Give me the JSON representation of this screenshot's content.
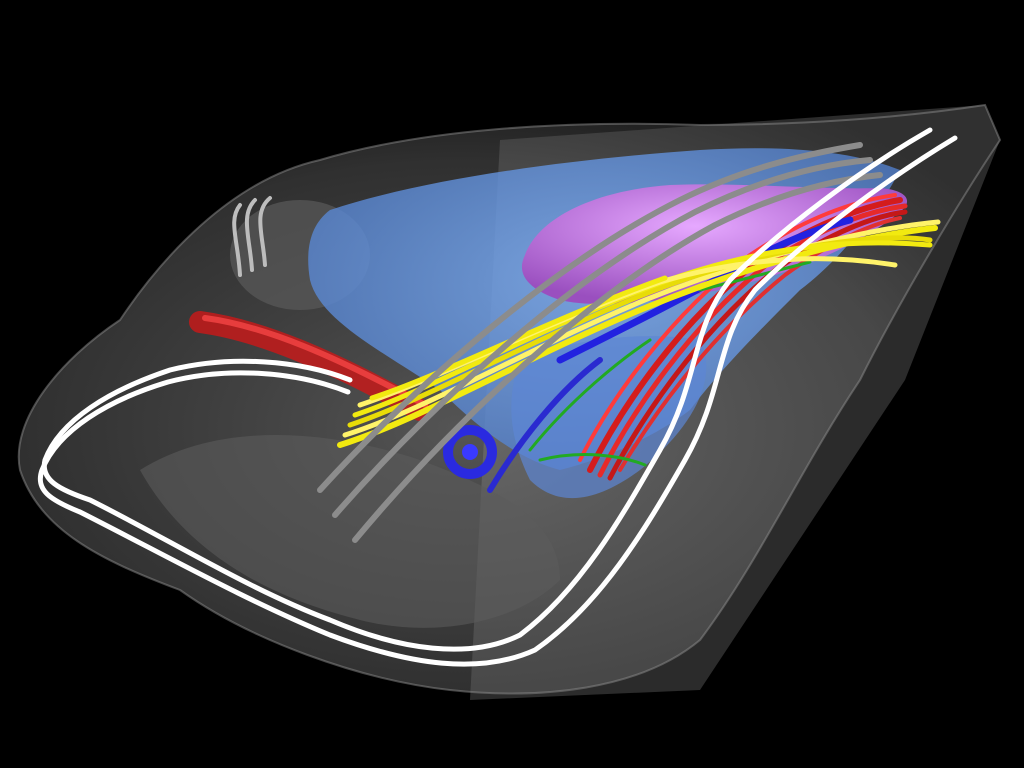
{
  "scene": {
    "background": "#000000",
    "colors": {
      "outer_shell": "#9a9a9a",
      "inner_volume": "#6f9ee8",
      "purple_mass": "#c27be0",
      "magenta": "#e040e0",
      "red_fiber": "#e02222",
      "yellow_fiber": "#f2ea10",
      "blue_fiber": "#2828e6",
      "green_fiber": "#22aa22",
      "white_fiber": "#ffffff",
      "gray_fiber": "#8a8a8a"
    }
  }
}
